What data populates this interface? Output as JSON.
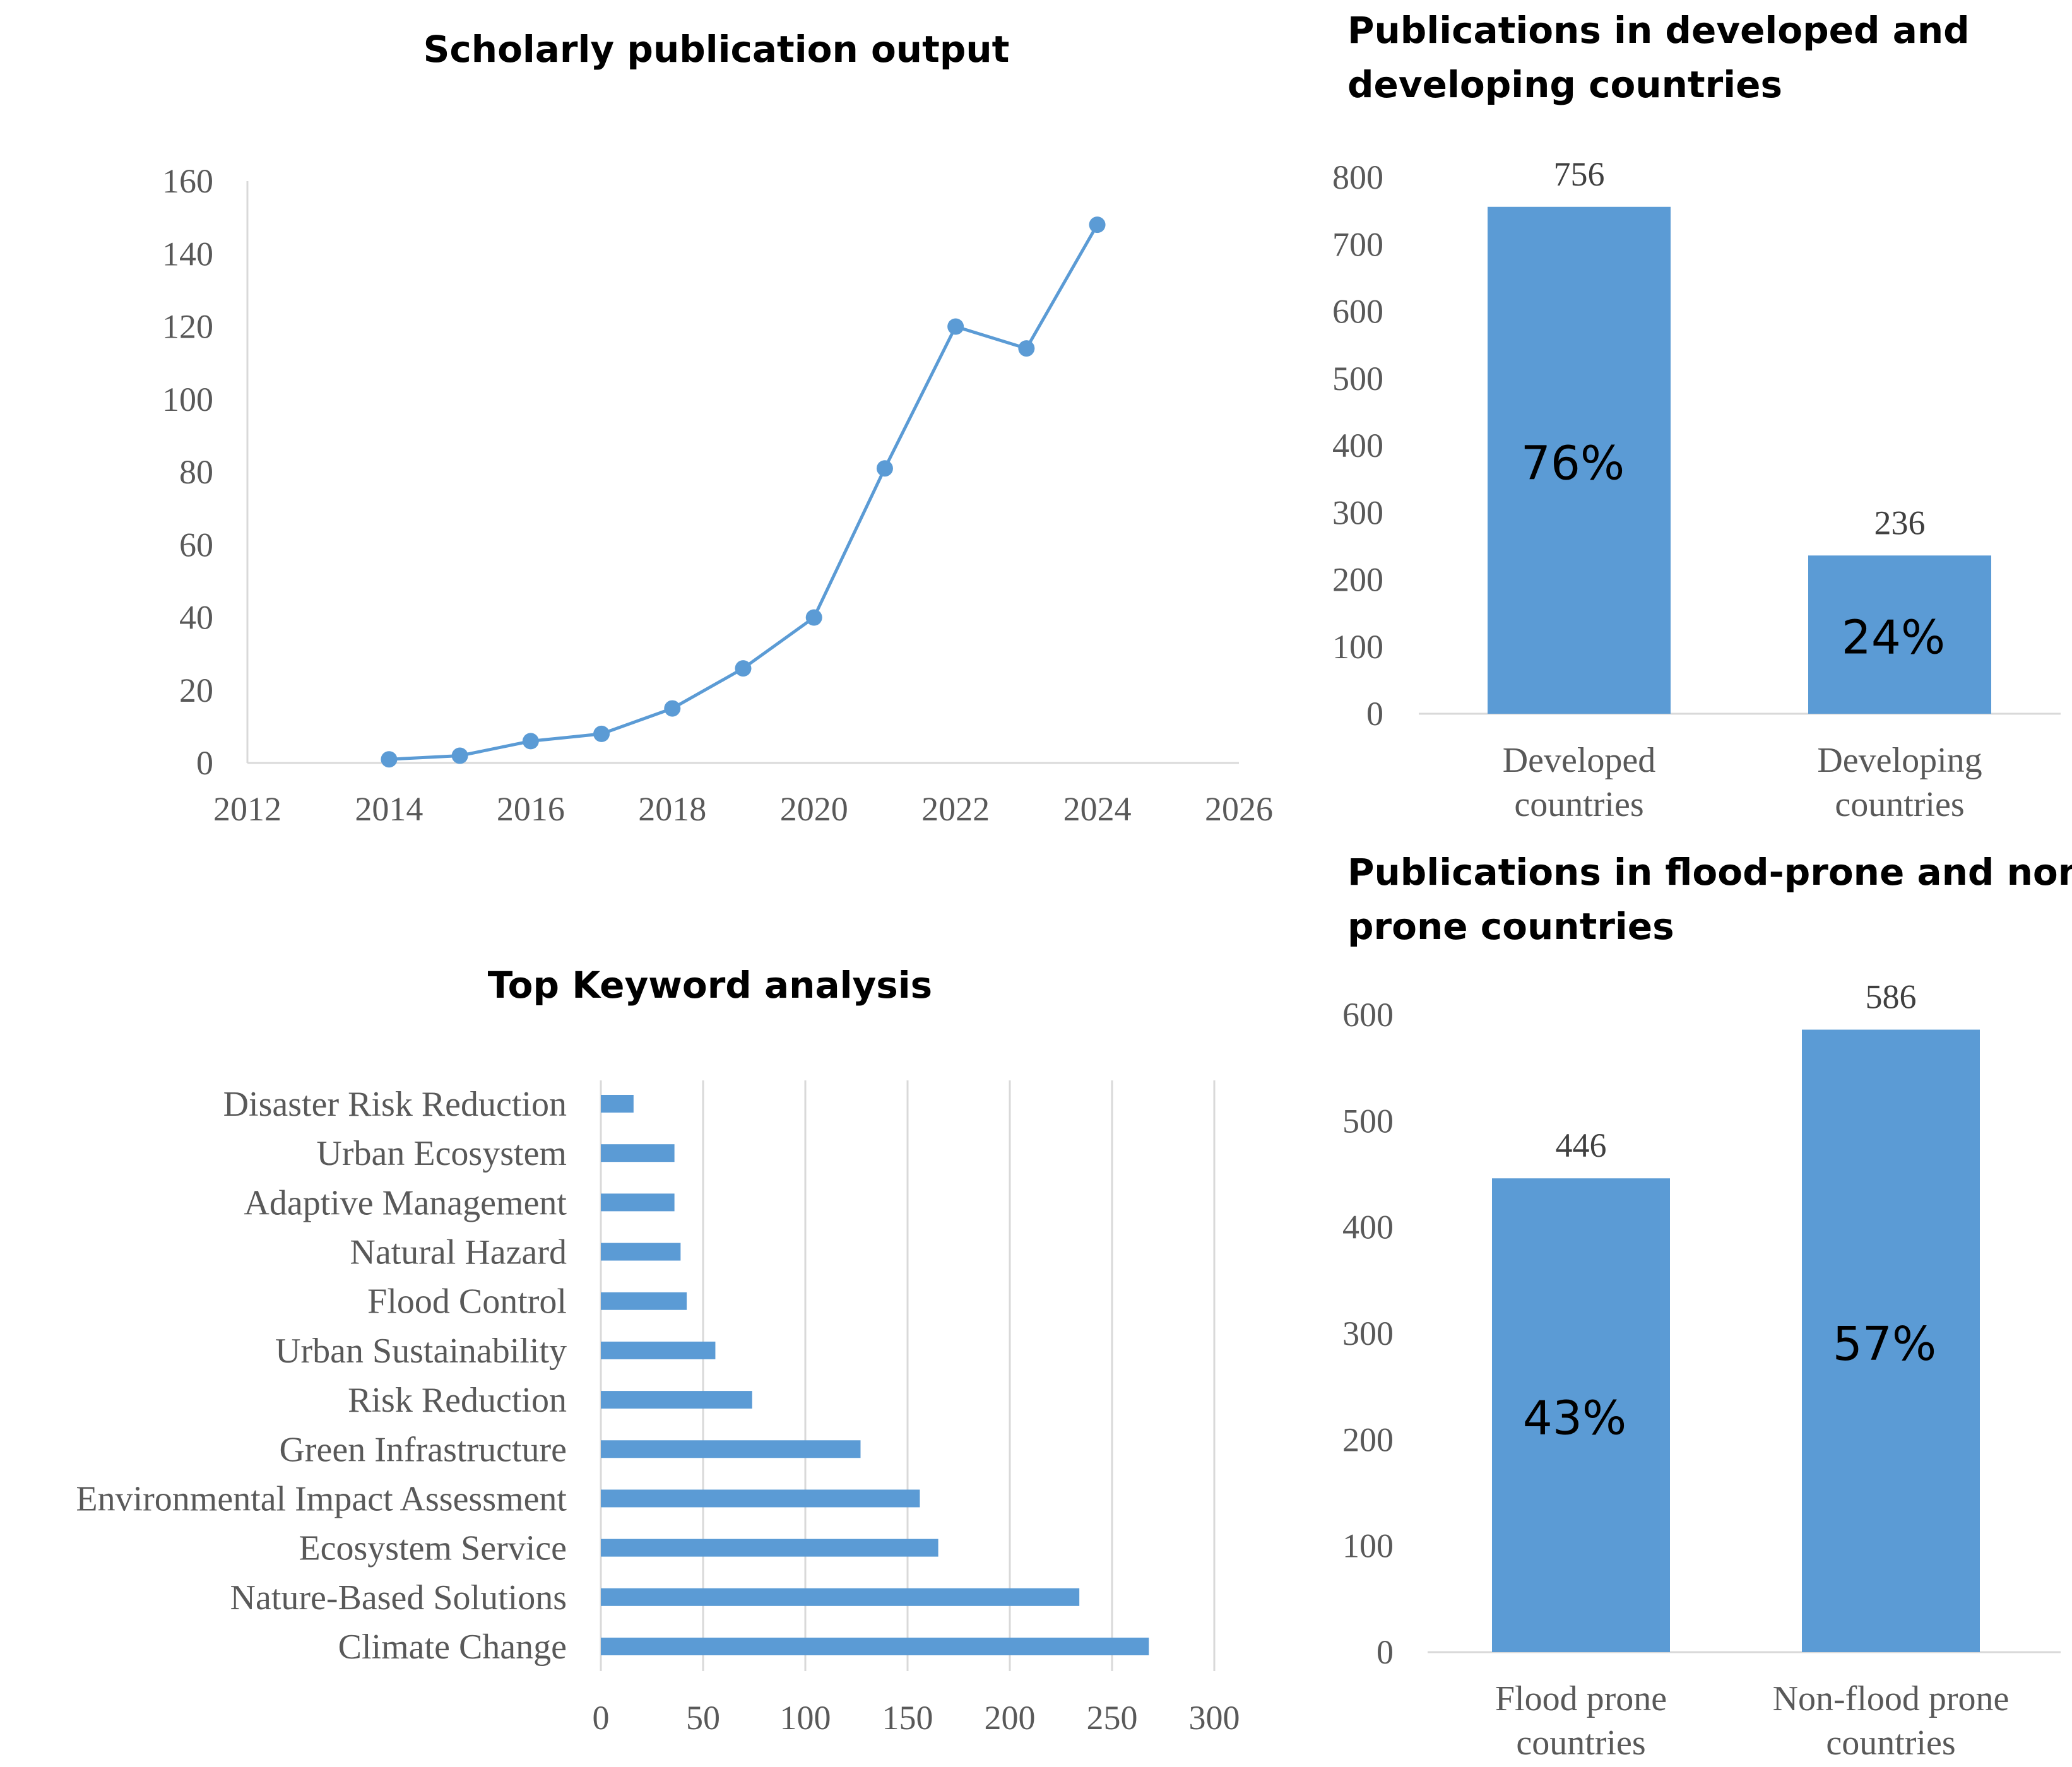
{
  "colors": {
    "primary": "#5b9bd5",
    "axis": "#d9d9d9",
    "text": "#595959"
  },
  "chart_data": [
    {
      "id": "line",
      "type": "line",
      "title": "Scholarly publication output",
      "xlabel": "",
      "ylabel": "",
      "xlim": [
        2012,
        2026
      ],
      "ylim": [
        0,
        160
      ],
      "xticks": [
        2012,
        2014,
        2016,
        2018,
        2020,
        2022,
        2024,
        2026
      ],
      "yticks": [
        0,
        20,
        40,
        60,
        80,
        100,
        120,
        140,
        160
      ],
      "x": [
        2014,
        2015,
        2016,
        2017,
        2018,
        2019,
        2020,
        2021,
        2022,
        2023,
        2024
      ],
      "y": [
        1,
        2,
        6,
        8,
        15,
        26,
        40,
        81,
        120,
        114,
        148
      ],
      "grid": false
    },
    {
      "id": "dev",
      "type": "bar",
      "title_lines": [
        "Publications in developed and",
        "developing countries"
      ],
      "categories": [
        [
          "Developed",
          "countries"
        ],
        [
          "Developing",
          "countries"
        ]
      ],
      "values": [
        756,
        236
      ],
      "value_labels": [
        "756",
        "236"
      ],
      "percent_labels": [
        "76%",
        "24%"
      ],
      "ylim": [
        0,
        800
      ],
      "yticks": [
        0,
        100,
        200,
        300,
        400,
        500,
        600,
        700,
        800
      ],
      "grid": false
    },
    {
      "id": "kw",
      "type": "bar",
      "orientation": "horizontal",
      "title": "Top Keyword analysis",
      "categories": [
        "Disaster Risk Reduction",
        "Urban Ecosystem",
        "Adaptive Management",
        "Natural Hazard",
        "Flood Control",
        "Urban Sustainability",
        "Risk Reduction",
        "Green Infrastructure",
        "Environmental Impact Assessment",
        "Ecosystem Service",
        "Nature-Based Solutions",
        "Climate Change"
      ],
      "values": [
        16,
        36,
        36,
        39,
        42,
        56,
        74,
        127,
        156,
        165,
        234,
        268
      ],
      "xlim": [
        0,
        300
      ],
      "xticks": [
        0,
        50,
        100,
        150,
        200,
        250,
        300
      ],
      "grid": true
    },
    {
      "id": "flood",
      "type": "bar",
      "title_lines": [
        "Publications in flood-prone and non",
        "prone countries"
      ],
      "categories": [
        [
          "Flood prone",
          "countries"
        ],
        [
          "Non-flood prone",
          "countries"
        ]
      ],
      "values": [
        446,
        586
      ],
      "value_labels": [
        "446",
        "586"
      ],
      "percent_labels": [
        "43%",
        "57%"
      ],
      "ylim": [
        0,
        600
      ],
      "yticks": [
        0,
        100,
        200,
        300,
        400,
        500,
        600
      ],
      "grid": false
    }
  ]
}
